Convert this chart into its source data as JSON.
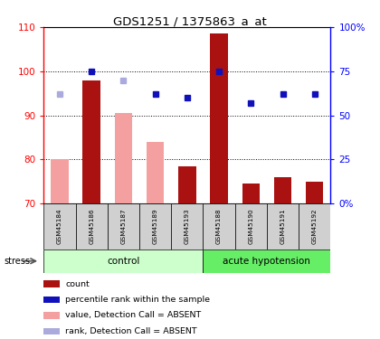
{
  "title": "GDS1251 / 1375863_a_at",
  "samples": [
    "GSM45184",
    "GSM45186",
    "GSM45187",
    "GSM45189",
    "GSM45193",
    "GSM45188",
    "GSM45190",
    "GSM45191",
    "GSM45192"
  ],
  "groups": {
    "control": [
      0,
      1,
      2,
      3,
      4
    ],
    "acute hypotension": [
      5,
      6,
      7,
      8
    ]
  },
  "bar_values": [
    80,
    98,
    90.5,
    84,
    78.5,
    108.5,
    74.5,
    76,
    75
  ],
  "bar_absent": [
    true,
    false,
    true,
    true,
    false,
    false,
    false,
    false,
    false
  ],
  "rank_values_pct": [
    62,
    75,
    70,
    62,
    60,
    75,
    57,
    62,
    62
  ],
  "rank_absent": [
    true,
    false,
    true,
    false,
    false,
    false,
    false,
    false,
    false
  ],
  "ylim_left": [
    70,
    110
  ],
  "ylim_right": [
    0,
    100
  ],
  "yticks_left": [
    70,
    80,
    90,
    100,
    110
  ],
  "yticks_right": [
    0,
    25,
    50,
    75,
    100
  ],
  "color_bar_present": "#aa1111",
  "color_bar_absent": "#f4a0a0",
  "color_rank_present": "#1111bb",
  "color_rank_absent": "#aaaadd",
  "group_color_control": "#ccffcc",
  "group_color_hypotension": "#66ee66",
  "bar_width": 0.55,
  "legend_items": [
    {
      "label": "count",
      "color": "#aa1111"
    },
    {
      "label": "percentile rank within the sample",
      "color": "#1111bb"
    },
    {
      "label": "value, Detection Call = ABSENT",
      "color": "#f4a0a0"
    },
    {
      "label": "rank, Detection Call = ABSENT",
      "color": "#aaaadd"
    }
  ]
}
